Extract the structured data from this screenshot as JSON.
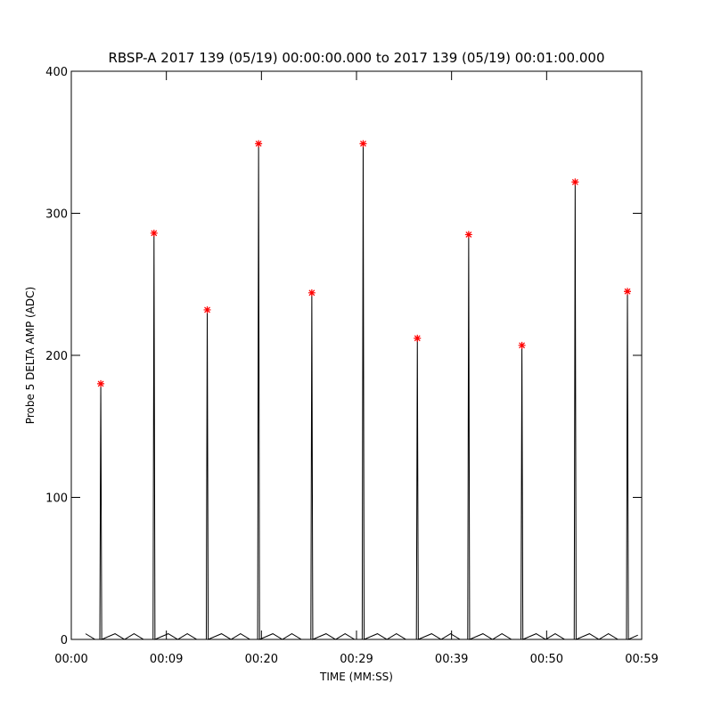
{
  "chart_data": {
    "type": "line",
    "title": "RBSP-A 2017 139 (05/19) 00:00:00.000 to 2017 139 (05/19) 00:01:00.000",
    "xlabel": "TIME (MM:SS)",
    "ylabel": "Probe 5 DELTA AMP (ADC)",
    "xlim": [
      0,
      60
    ],
    "ylim": [
      0,
      400
    ],
    "xticks": [
      {
        "value": 0,
        "label": "00:00"
      },
      {
        "value": 10,
        "label": "00:09"
      },
      {
        "value": 20,
        "label": "00:20"
      },
      {
        "value": 30,
        "label": "00:29"
      },
      {
        "value": 40,
        "label": "00:39"
      },
      {
        "value": 50,
        "label": "00:50"
      },
      {
        "value": 60,
        "label": "00:59"
      }
    ],
    "yticks": [
      0,
      100,
      200,
      300,
      400
    ],
    "series": [
      {
        "color": "#000000",
        "marker": "none",
        "x": [
          1.5,
          2.5,
          3.0,
          3.1,
          3.2,
          4.6,
          5.6,
          6.6,
          7.6,
          8.6,
          8.7,
          8.8,
          10.2,
          11.2,
          12.2,
          13.2,
          14.2,
          14.3,
          14.4,
          15.8,
          16.8,
          17.8,
          18.8,
          19.6,
          19.7,
          19.8,
          21.2,
          22.2,
          23.2,
          24.2,
          25.2,
          25.3,
          25.4,
          26.8,
          27.8,
          28.8,
          29.8,
          30.6,
          30.7,
          30.8,
          32.2,
          33.2,
          34.2,
          35.2,
          36.3,
          36.4,
          36.5,
          37.9,
          38.9,
          39.9,
          40.9,
          41.7,
          41.8,
          41.9,
          43.3,
          44.3,
          45.3,
          46.3,
          47.3,
          47.4,
          47.5,
          48.9,
          49.9,
          50.9,
          51.9,
          52.9,
          53.0,
          53.1,
          54.5,
          55.5,
          56.5,
          57.5,
          58.4,
          58.5,
          58.6,
          59.6
        ],
        "values": [
          4,
          0,
          0,
          180,
          0,
          4,
          0,
          4,
          0,
          0,
          286,
          0,
          4,
          0,
          4,
          0,
          0,
          232,
          0,
          4,
          0,
          4,
          0,
          0,
          349,
          0,
          4,
          0,
          4,
          0,
          0,
          244,
          0,
          4,
          0,
          4,
          0,
          0,
          349,
          0,
          4,
          0,
          4,
          0,
          0,
          212,
          0,
          4,
          0,
          4,
          0,
          0,
          285,
          0,
          4,
          0,
          4,
          0,
          0,
          207,
          0,
          4,
          0,
          4,
          0,
          0,
          322,
          0,
          4,
          0,
          4,
          0,
          0,
          245,
          0,
          3
        ]
      },
      {
        "color": "#ff0000",
        "marker": "asterisk",
        "x": [
          3.1,
          8.7,
          14.3,
          19.7,
          25.3,
          30.7,
          36.4,
          41.8,
          47.4,
          53.0,
          58.5
        ],
        "values": [
          180,
          286,
          232,
          349,
          244,
          349,
          212,
          285,
          207,
          322,
          245
        ]
      }
    ]
  }
}
